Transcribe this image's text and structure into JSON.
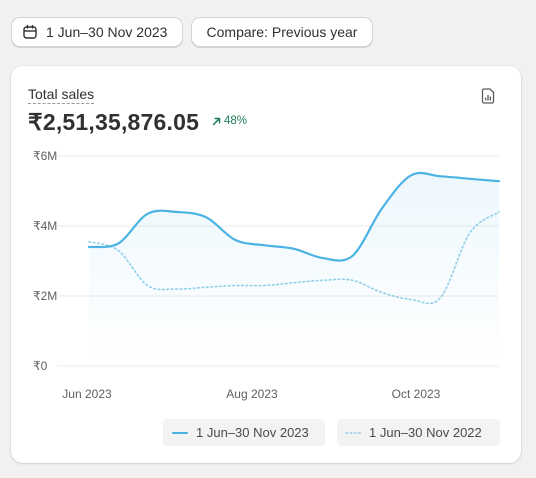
{
  "toolbar": {
    "date_range": "1 Jun–30 Nov 2023",
    "compare": "Compare: Previous year"
  },
  "card": {
    "metric_title": "Total sales",
    "total_value": "₹2,51,35,876.05",
    "change_percent": "48%"
  },
  "colors": {
    "primary_series": "#4bb3e3",
    "comparison_series": "#8ecfe9",
    "positive_change": "#1a7f53",
    "gridline": "#ebebeb"
  },
  "chart_data": {
    "type": "line",
    "ylim": [
      0,
      6000000
    ],
    "y_ticks": [
      {
        "value": 0,
        "label": "₹0"
      },
      {
        "value": 2000000,
        "label": "₹2M"
      },
      {
        "value": 4000000,
        "label": "₹4M"
      },
      {
        "value": 6000000,
        "label": "₹6M"
      }
    ],
    "x_labels": [
      "Jun 2023",
      "Aug 2023",
      "Oct 2023"
    ],
    "series": [
      {
        "name": "1 Jun–30 Nov 2023",
        "style": "solid",
        "values": [
          3400000,
          3500000,
          4350000,
          4400000,
          4250000,
          3600000,
          3450000,
          3350000,
          3080000,
          3150000,
          4500000,
          5450000,
          5420000,
          5350000,
          5280000
        ]
      },
      {
        "name": "1 Jun–30 Nov 2022",
        "style": "dotted",
        "values": [
          3550000,
          3300000,
          2300000,
          2200000,
          2250000,
          2300000,
          2300000,
          2380000,
          2450000,
          2450000,
          2100000,
          1900000,
          1950000,
          3800000,
          4400000
        ]
      }
    ]
  }
}
